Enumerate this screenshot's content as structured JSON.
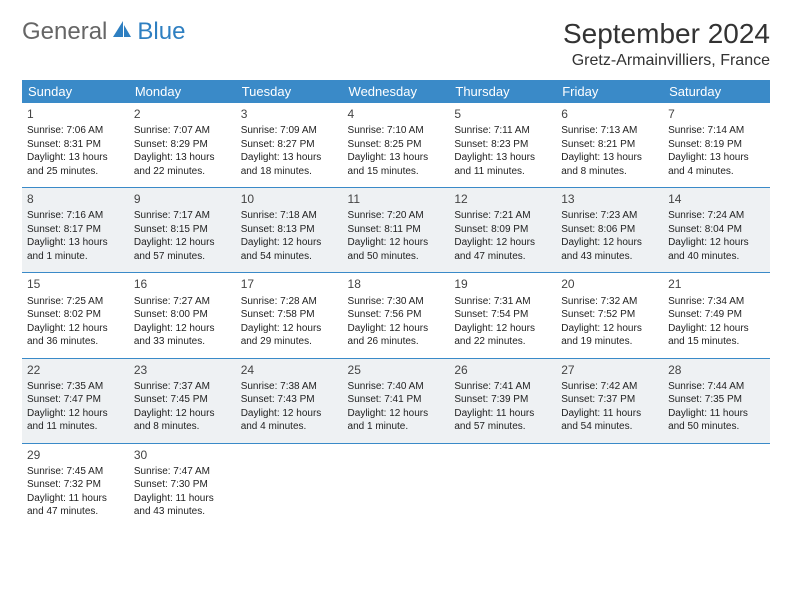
{
  "logo": {
    "text1": "General",
    "text2": "Blue"
  },
  "title": "September 2024",
  "location": "Gretz-Armainvilliers, France",
  "colors": {
    "header_bg": "#3a8ac8",
    "header_text": "#ffffff",
    "row_border": "#3a8ac8",
    "shaded_bg": "#eef1f3",
    "logo_blue": "#2e7fc1",
    "logo_gray": "#666666",
    "text": "#222222"
  },
  "weekdays": [
    "Sunday",
    "Monday",
    "Tuesday",
    "Wednesday",
    "Thursday",
    "Friday",
    "Saturday"
  ],
  "weeks": [
    {
      "shaded": false,
      "days": [
        {
          "num": "1",
          "sunrise": "7:06 AM",
          "sunset": "8:31 PM",
          "daylight": "13 hours and 25 minutes."
        },
        {
          "num": "2",
          "sunrise": "7:07 AM",
          "sunset": "8:29 PM",
          "daylight": "13 hours and 22 minutes."
        },
        {
          "num": "3",
          "sunrise": "7:09 AM",
          "sunset": "8:27 PM",
          "daylight": "13 hours and 18 minutes."
        },
        {
          "num": "4",
          "sunrise": "7:10 AM",
          "sunset": "8:25 PM",
          "daylight": "13 hours and 15 minutes."
        },
        {
          "num": "5",
          "sunrise": "7:11 AM",
          "sunset": "8:23 PM",
          "daylight": "13 hours and 11 minutes."
        },
        {
          "num": "6",
          "sunrise": "7:13 AM",
          "sunset": "8:21 PM",
          "daylight": "13 hours and 8 minutes."
        },
        {
          "num": "7",
          "sunrise": "7:14 AM",
          "sunset": "8:19 PM",
          "daylight": "13 hours and 4 minutes."
        }
      ]
    },
    {
      "shaded": true,
      "days": [
        {
          "num": "8",
          "sunrise": "7:16 AM",
          "sunset": "8:17 PM",
          "daylight": "13 hours and 1 minute."
        },
        {
          "num": "9",
          "sunrise": "7:17 AM",
          "sunset": "8:15 PM",
          "daylight": "12 hours and 57 minutes."
        },
        {
          "num": "10",
          "sunrise": "7:18 AM",
          "sunset": "8:13 PM",
          "daylight": "12 hours and 54 minutes."
        },
        {
          "num": "11",
          "sunrise": "7:20 AM",
          "sunset": "8:11 PM",
          "daylight": "12 hours and 50 minutes."
        },
        {
          "num": "12",
          "sunrise": "7:21 AM",
          "sunset": "8:09 PM",
          "daylight": "12 hours and 47 minutes."
        },
        {
          "num": "13",
          "sunrise": "7:23 AM",
          "sunset": "8:06 PM",
          "daylight": "12 hours and 43 minutes."
        },
        {
          "num": "14",
          "sunrise": "7:24 AM",
          "sunset": "8:04 PM",
          "daylight": "12 hours and 40 minutes."
        }
      ]
    },
    {
      "shaded": false,
      "days": [
        {
          "num": "15",
          "sunrise": "7:25 AM",
          "sunset": "8:02 PM",
          "daylight": "12 hours and 36 minutes."
        },
        {
          "num": "16",
          "sunrise": "7:27 AM",
          "sunset": "8:00 PM",
          "daylight": "12 hours and 33 minutes."
        },
        {
          "num": "17",
          "sunrise": "7:28 AM",
          "sunset": "7:58 PM",
          "daylight": "12 hours and 29 minutes."
        },
        {
          "num": "18",
          "sunrise": "7:30 AM",
          "sunset": "7:56 PM",
          "daylight": "12 hours and 26 minutes."
        },
        {
          "num": "19",
          "sunrise": "7:31 AM",
          "sunset": "7:54 PM",
          "daylight": "12 hours and 22 minutes."
        },
        {
          "num": "20",
          "sunrise": "7:32 AM",
          "sunset": "7:52 PM",
          "daylight": "12 hours and 19 minutes."
        },
        {
          "num": "21",
          "sunrise": "7:34 AM",
          "sunset": "7:49 PM",
          "daylight": "12 hours and 15 minutes."
        }
      ]
    },
    {
      "shaded": true,
      "days": [
        {
          "num": "22",
          "sunrise": "7:35 AM",
          "sunset": "7:47 PM",
          "daylight": "12 hours and 11 minutes."
        },
        {
          "num": "23",
          "sunrise": "7:37 AM",
          "sunset": "7:45 PM",
          "daylight": "12 hours and 8 minutes."
        },
        {
          "num": "24",
          "sunrise": "7:38 AM",
          "sunset": "7:43 PM",
          "daylight": "12 hours and 4 minutes."
        },
        {
          "num": "25",
          "sunrise": "7:40 AM",
          "sunset": "7:41 PM",
          "daylight": "12 hours and 1 minute."
        },
        {
          "num": "26",
          "sunrise": "7:41 AM",
          "sunset": "7:39 PM",
          "daylight": "11 hours and 57 minutes."
        },
        {
          "num": "27",
          "sunrise": "7:42 AM",
          "sunset": "7:37 PM",
          "daylight": "11 hours and 54 minutes."
        },
        {
          "num": "28",
          "sunrise": "7:44 AM",
          "sunset": "7:35 PM",
          "daylight": "11 hours and 50 minutes."
        }
      ]
    },
    {
      "shaded": false,
      "days": [
        {
          "num": "29",
          "sunrise": "7:45 AM",
          "sunset": "7:32 PM",
          "daylight": "11 hours and 47 minutes."
        },
        {
          "num": "30",
          "sunrise": "7:47 AM",
          "sunset": "7:30 PM",
          "daylight": "11 hours and 43 minutes."
        },
        null,
        null,
        null,
        null,
        null
      ]
    }
  ],
  "labels": {
    "sunrise_prefix": "Sunrise: ",
    "sunset_prefix": "Sunset: ",
    "daylight_prefix": "Daylight: "
  }
}
